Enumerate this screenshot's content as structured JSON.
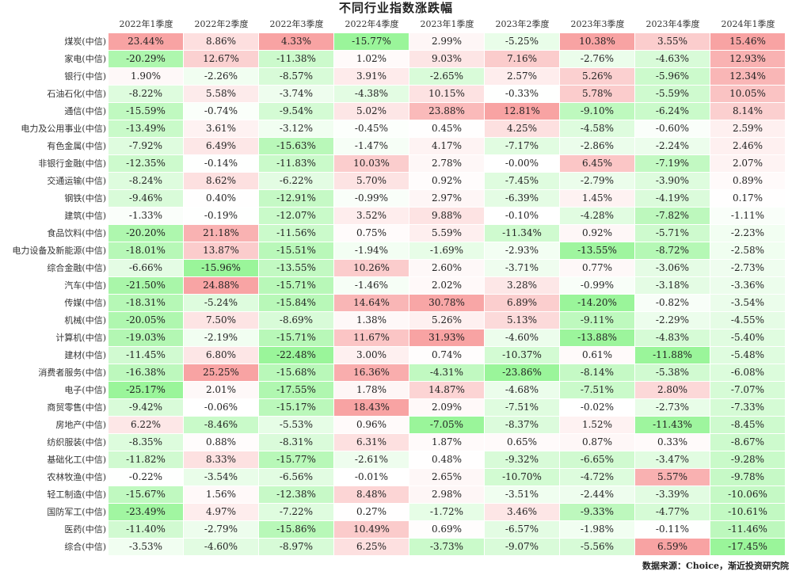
{
  "chart_data": {
    "type": "heatmap",
    "title": "不同行业指数涨跌幅",
    "columns": [
      "2022年1季度",
      "2022年2季度",
      "2022年3季度",
      "2022年4季度",
      "2023年1季度",
      "2023年2季度",
      "2023年3季度",
      "2023年4季度",
      "2024年1季度"
    ],
    "rows": [
      {
        "name": "煤炭(中信)",
        "values": [
          "23.44%",
          "8.86%",
          "4.33%",
          "-15.77%",
          "2.99%",
          "-5.25%",
          "10.38%",
          "3.55%",
          "15.46%"
        ]
      },
      {
        "name": "家电(中信)",
        "values": [
          "-20.29%",
          "12.67%",
          "-11.38%",
          "1.02%",
          "9.03%",
          "7.16%",
          "-2.76%",
          "-4.63%",
          "12.93%"
        ]
      },
      {
        "name": "银行(中信)",
        "values": [
          "1.90%",
          "-2.26%",
          "-8.57%",
          "3.91%",
          "-2.65%",
          "2.57%",
          "5.26%",
          "-5.96%",
          "12.34%"
        ]
      },
      {
        "name": "石油石化(中信)",
        "values": [
          "-8.22%",
          "5.58%",
          "-3.74%",
          "-4.38%",
          "10.15%",
          "-0.33%",
          "5.78%",
          "-5.59%",
          "10.05%"
        ]
      },
      {
        "name": "通信(中信)",
        "values": [
          "-15.59%",
          "-0.74%",
          "-9.54%",
          "5.02%",
          "23.88%",
          "12.81%",
          "-9.10%",
          "-6.24%",
          "8.14%"
        ]
      },
      {
        "name": "电力及公用事业(中信)",
        "values": [
          "-13.49%",
          "3.61%",
          "-3.12%",
          "-0.45%",
          "0.45%",
          "4.25%",
          "-4.58%",
          "-0.60%",
          "2.59%"
        ]
      },
      {
        "name": "有色金属(中信)",
        "values": [
          "-7.92%",
          "6.49%",
          "-15.63%",
          "-1.47%",
          "4.17%",
          "-7.17%",
          "-2.86%",
          "-2.24%",
          "2.46%"
        ]
      },
      {
        "name": "非银行金融(中信)",
        "values": [
          "-12.35%",
          "-0.14%",
          "-11.83%",
          "10.03%",
          "2.78%",
          "-0.00%",
          "6.45%",
          "-7.19%",
          "2.07%"
        ]
      },
      {
        "name": "交通运输(中信)",
        "values": [
          "-8.24%",
          "8.62%",
          "-6.22%",
          "5.70%",
          "0.92%",
          "-7.45%",
          "-2.79%",
          "-3.90%",
          "0.89%"
        ]
      },
      {
        "name": "钢铁(中信)",
        "values": [
          "-9.46%",
          "0.40%",
          "-12.91%",
          "-0.99%",
          "2.97%",
          "-6.39%",
          "1.45%",
          "-4.19%",
          "0.17%"
        ]
      },
      {
        "name": "建筑(中信)",
        "values": [
          "-1.33%",
          "-0.19%",
          "-12.07%",
          "3.52%",
          "9.88%",
          "-0.10%",
          "-4.28%",
          "-7.82%",
          "-1.11%"
        ]
      },
      {
        "name": "食品饮料(中信)",
        "values": [
          "-20.20%",
          "21.18%",
          "-11.56%",
          "0.75%",
          "5.59%",
          "-11.34%",
          "0.92%",
          "-5.71%",
          "-2.23%"
        ]
      },
      {
        "name": "电力设备及新能源(中信)",
        "values": [
          "-18.01%",
          "13.87%",
          "-15.51%",
          "-1.94%",
          "-1.69%",
          "-2.93%",
          "-13.55%",
          "-8.72%",
          "-2.58%"
        ]
      },
      {
        "name": "综合金融(中信)",
        "values": [
          "-6.66%",
          "-15.96%",
          "-13.55%",
          "10.26%",
          "2.60%",
          "-3.71%",
          "0.77%",
          "-3.06%",
          "-2.73%"
        ]
      },
      {
        "name": "汽车(中信)",
        "values": [
          "-21.50%",
          "24.88%",
          "-15.71%",
          "-1.46%",
          "2.02%",
          "3.28%",
          "-0.99%",
          "-3.18%",
          "-3.36%"
        ]
      },
      {
        "name": "传媒(中信)",
        "values": [
          "-18.31%",
          "-5.24%",
          "-15.84%",
          "14.64%",
          "30.78%",
          "6.89%",
          "-14.20%",
          "-0.82%",
          "-3.54%"
        ]
      },
      {
        "name": "机械(中信)",
        "values": [
          "-20.05%",
          "7.50%",
          "-8.69%",
          "1.38%",
          "5.26%",
          "5.13%",
          "-9.11%",
          "-2.29%",
          "-4.55%"
        ]
      },
      {
        "name": "计算机(中信)",
        "values": [
          "-19.03%",
          "-2.19%",
          "-15.71%",
          "11.67%",
          "31.93%",
          "-4.60%",
          "-13.88%",
          "-4.83%",
          "-5.40%"
        ]
      },
      {
        "name": "建材(中信)",
        "values": [
          "-11.45%",
          "6.80%",
          "-22.48%",
          "3.00%",
          "0.74%",
          "-10.37%",
          "0.61%",
          "-11.88%",
          "-5.48%"
        ]
      },
      {
        "name": "消费者服务(中信)",
        "values": [
          "-16.38%",
          "25.25%",
          "-15.68%",
          "16.36%",
          "-4.31%",
          "-23.86%",
          "-8.14%",
          "-5.38%",
          "-6.08%"
        ]
      },
      {
        "name": "电子(中信)",
        "values": [
          "-25.17%",
          "2.01%",
          "-17.55%",
          "1.78%",
          "14.87%",
          "-4.68%",
          "-7.51%",
          "2.80%",
          "-7.07%"
        ]
      },
      {
        "name": "商贸零售(中信)",
        "values": [
          "-9.42%",
          "-0.06%",
          "-15.17%",
          "18.43%",
          "2.09%",
          "-7.51%",
          "-0.02%",
          "-2.73%",
          "-7.33%"
        ]
      },
      {
        "name": "房地产(中信)",
        "values": [
          "6.22%",
          "-8.46%",
          "-5.53%",
          "0.96%",
          "-7.05%",
          "-8.37%",
          "1.52%",
          "-11.43%",
          "-8.45%"
        ]
      },
      {
        "name": "纺织服装(中信)",
        "values": [
          "-8.35%",
          "0.88%",
          "-8.31%",
          "6.31%",
          "1.87%",
          "0.65%",
          "0.87%",
          "0.33%",
          "-8.67%"
        ]
      },
      {
        "name": "基础化工(中信)",
        "values": [
          "-11.82%",
          "8.33%",
          "-15.77%",
          "-2.61%",
          "0.48%",
          "-9.32%",
          "-6.65%",
          "-3.47%",
          "-9.28%"
        ]
      },
      {
        "name": "农林牧渔(中信)",
        "values": [
          "-0.22%",
          "-3.54%",
          "-6.56%",
          "-0.01%",
          "2.65%",
          "-10.70%",
          "-4.72%",
          "5.57%",
          "-9.78%"
        ]
      },
      {
        "name": "轻工制造(中信)",
        "values": [
          "-15.67%",
          "1.56%",
          "-12.38%",
          "8.48%",
          "2.98%",
          "-3.51%",
          "-2.44%",
          "-3.39%",
          "-10.06%"
        ]
      },
      {
        "name": "国防军工(中信)",
        "values": [
          "-23.49%",
          "4.97%",
          "-7.22%",
          "0.27%",
          "-1.72%",
          "3.46%",
          "-9.33%",
          "-4.77%",
          "-10.61%"
        ]
      },
      {
        "name": "医药(中信)",
        "values": [
          "-11.40%",
          "-2.79%",
          "-15.86%",
          "10.49%",
          "0.69%",
          "-6.57%",
          "-1.98%",
          "-0.11%",
          "-11.46%"
        ]
      },
      {
        "name": "综合(中信)",
        "values": [
          "-3.53%",
          "-4.60%",
          "-8.97%",
          "6.25%",
          "-3.73%",
          "-9.07%",
          "-5.56%",
          "6.59%",
          "-17.45%"
        ]
      }
    ],
    "colors": {
      "positive": "#f8a3a3",
      "negative": "#9af59a",
      "neutral": "#ffffff"
    }
  },
  "source": "数据来源：Choice，渐近投资研究院"
}
